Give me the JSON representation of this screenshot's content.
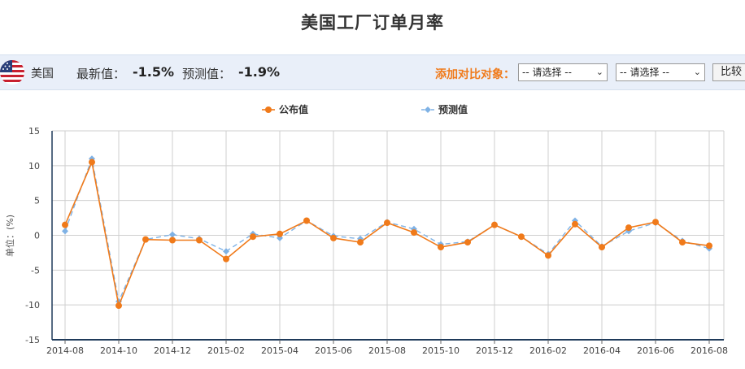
{
  "page": {
    "title": "美国工厂订单月率"
  },
  "info_bar": {
    "country": "美国",
    "latest_label": "最新值：",
    "latest_value": "-1.5%",
    "forecast_label": "预测值：",
    "forecast_value": "-1.9%",
    "compare_label": "添加对比对象：",
    "select1": "-- 请选择 --",
    "select2": "-- 请选择 --",
    "compare_button": "比较",
    "flag_icon": "us-flag-icon"
  },
  "colors": {
    "published": "#f07a1a",
    "forecast": "#7fb2e5",
    "grid": "#cfcfcf",
    "axis": "#1f3a5a"
  },
  "chart_data": {
    "type": "line",
    "ylabel": "单位：(%)",
    "ylim": [
      -15,
      15
    ],
    "yticks": [
      15,
      10,
      5,
      0,
      -5,
      -10,
      -15
    ],
    "xticks": [
      "2014-08",
      "2014-10",
      "2014-12",
      "2015-02",
      "2015-04",
      "2015-06",
      "2015-08",
      "2015-10",
      "2015-12",
      "2016-02",
      "2016-04",
      "2016-06",
      "2016-08"
    ],
    "grid": true,
    "legend_position": "top",
    "x": [
      "2014-08",
      "2014-09",
      "2014-10",
      "2014-11",
      "2014-12",
      "2015-01",
      "2015-02",
      "2015-03",
      "2015-04",
      "2015-05",
      "2015-06",
      "2015-07",
      "2015-08",
      "2015-09",
      "2015-10",
      "2015-11",
      "2015-12",
      "2016-01",
      "2016-02",
      "2016-03",
      "2016-04",
      "2016-05",
      "2016-06",
      "2016-07",
      "2016-08"
    ],
    "series": [
      {
        "name": "公布值",
        "style": "solid",
        "marker": "circle",
        "values": [
          1.5,
          10.5,
          -10.1,
          -0.6,
          -0.7,
          -0.7,
          -3.4,
          -0.2,
          0.2,
          2.1,
          -0.4,
          -1.0,
          1.8,
          0.4,
          -1.7,
          -1.0,
          1.5,
          -0.2,
          -2.9,
          1.6,
          -1.7,
          1.1,
          1.9,
          -1.0,
          -1.5
        ]
      },
      {
        "name": "预测值",
        "style": "dashed",
        "marker": "diamond",
        "values": [
          0.6,
          11.0,
          -9.5,
          -0.6,
          0.1,
          -0.5,
          -2.3,
          0.2,
          -0.4,
          2.1,
          -0.1,
          -0.5,
          1.9,
          0.9,
          -1.3,
          -0.9,
          1.5,
          -0.2,
          -2.7,
          2.1,
          -1.6,
          0.6,
          1.8,
          -0.8,
          -1.9
        ]
      }
    ]
  }
}
